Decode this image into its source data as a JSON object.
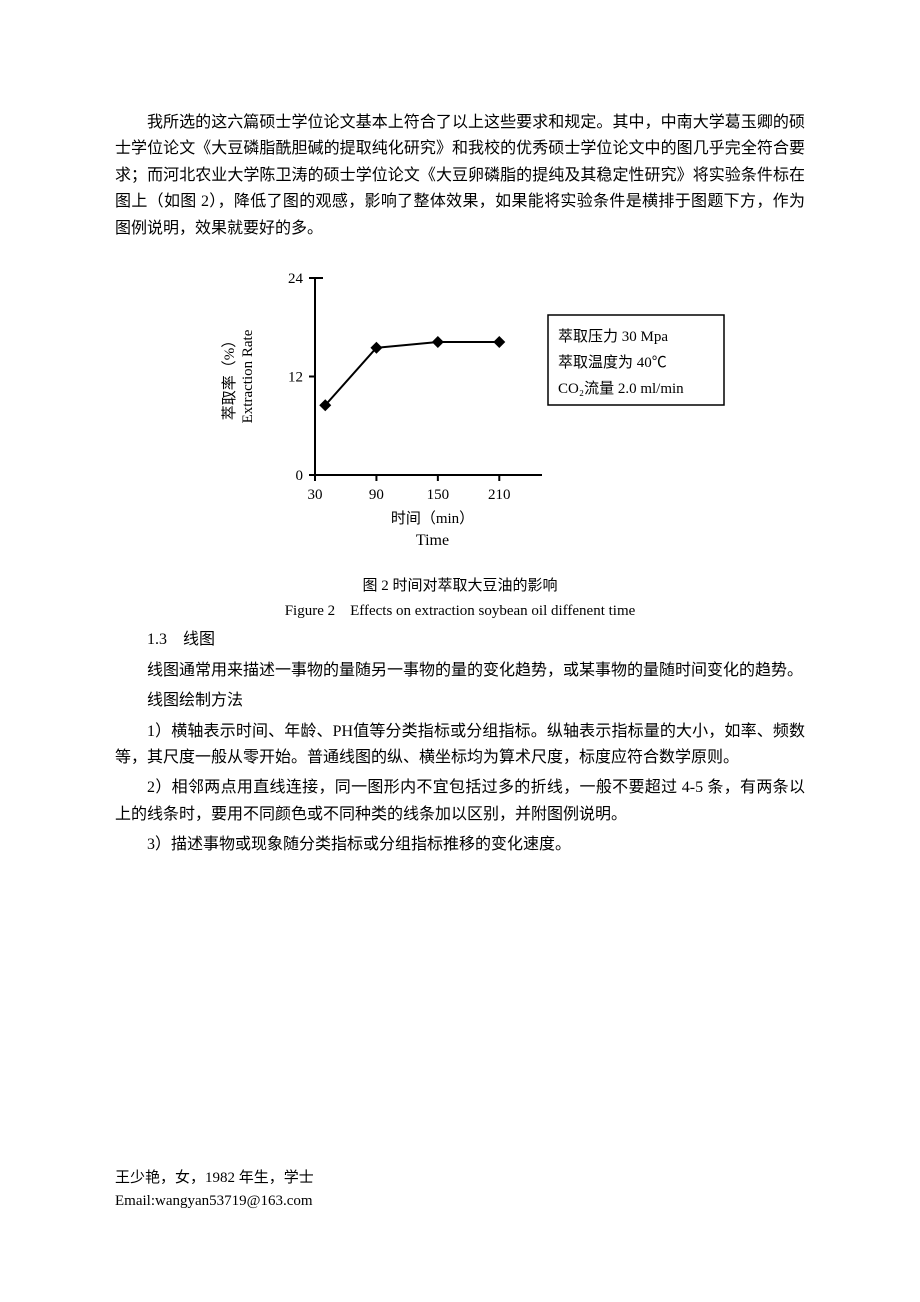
{
  "paragraphs": {
    "p1": "我所选的这六篇硕士学位论文基本上符合了以上这些要求和规定。其中，中南大学葛玉卿的硕士学位论文《大豆磷脂酰胆碱的提取纯化研究》和我校的优秀硕士学位论文中的图几乎完全符合要求；而河北农业大学陈卫涛的硕士学位论文《大豆卵磷脂的提纯及其稳定性研究》将实验条件标在图上（如图 2），降低了图的观感，影响了整体效果，如果能将实验条件是横排于图题下方，作为图例说明，效果就要好的多。",
    "section_head": "1.3　线图",
    "p2": "线图通常用来描述一事物的量随另一事物的量的变化趋势，或某事物的量随时间变化的趋势。",
    "p3": "线图绘制方法",
    "p4": "1）横轴表示时间、年龄、PH值等分类指标或分组指标。纵轴表示指标量的大小，如率、频数等，其尺度一般从零开始。普通线图的纵、横坐标均为算术尺度，标度应符合数学原则。",
    "p5": "2）相邻两点用直线连接，同一图形内不宜包括过多的折线，一般不要超过 4-5 条，有两条以上的线条时，要用不同颜色或不同种类的线条加以区别，并附图例说明。",
    "p6": "3）描述事物或现象随分类指标或分组指标推移的变化速度。"
  },
  "chart": {
    "type": "line",
    "ylabel_cn": "萃取率（%）",
    "ylabel_en": "Extraction Rate",
    "xlabel_cn": "时间（min）",
    "xlabel_en": "Time",
    "yticks": [
      0,
      12,
      24
    ],
    "xticks": [
      30,
      90,
      150,
      210
    ],
    "ylim": [
      0,
      24
    ],
    "xlim": [
      30,
      240
    ],
    "data": [
      {
        "x": 40,
        "y": 8.5
      },
      {
        "x": 90,
        "y": 15.5
      },
      {
        "x": 150,
        "y": 16.2
      },
      {
        "x": 210,
        "y": 16.2
      }
    ],
    "marker": "diamond",
    "marker_size": 6,
    "line_color": "#000000",
    "line_width": 2,
    "axis_color": "#000000",
    "axis_width": 2,
    "font_size": 15,
    "legend_box": {
      "lines": [
        "萃取压力 30 Mpa",
        "萃取温度为 40℃",
        "CO₂流量 2.0 ml/min"
      ],
      "border_color": "#000000",
      "border_width": 1.5
    }
  },
  "caption": {
    "cn": "图 2  时间对萃取大豆油的影响",
    "en": "Figure 2　Effects on extraction soybean oil diffenent time"
  },
  "footer": {
    "line1": "王少艳，女，1982 年生，学士",
    "line2": "Email:wangyan53719@163.com"
  }
}
